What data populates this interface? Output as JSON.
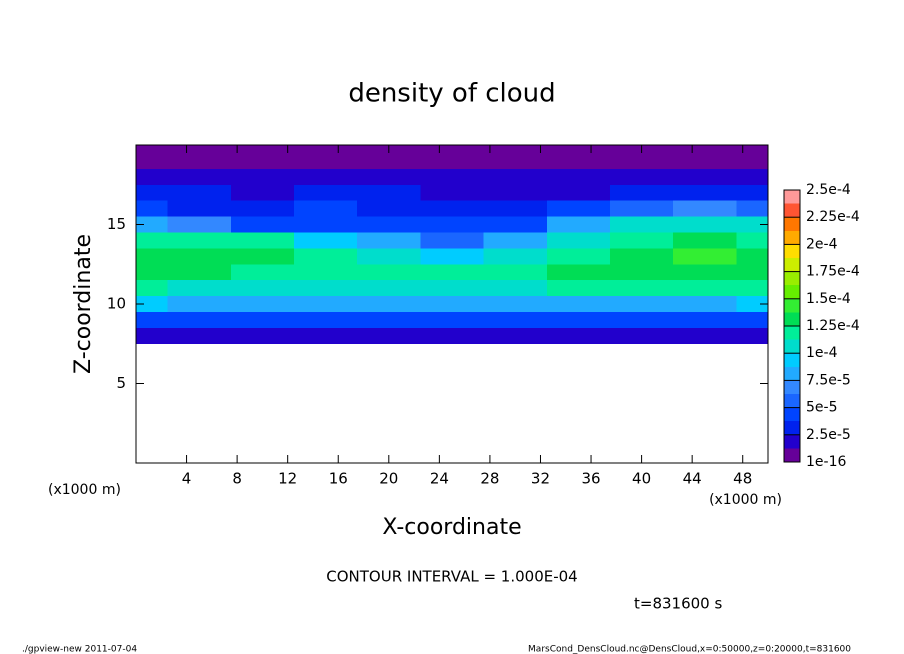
{
  "chart_data": {
    "type": "heatmap",
    "title": "density of cloud",
    "x_label": "X-coordinate",
    "y_label": "Z-coordinate",
    "x_unit_left": "(x1000 m)",
    "x_unit_right": "(x1000 m)",
    "annotation": "CONTOUR INTERVAL = 1.000E-04",
    "time_label": "t=831600 s",
    "footer_left": "./gpview-new   2011-07-04",
    "footer_right": "MarsCond_DensCloud.nc@DensCloud,x=0:50000,z=0:20000,t=831600",
    "xlim": [
      0,
      50
    ],
    "ylim": [
      0,
      20
    ],
    "xticks": [
      4,
      8,
      12,
      16,
      20,
      24,
      28,
      32,
      36,
      40,
      44,
      48
    ],
    "yticks": [
      5,
      10,
      15
    ],
    "x": [
      0,
      5,
      10,
      15,
      20,
      25,
      30,
      35,
      40,
      45,
      50
    ],
    "z": [
      8,
      9,
      10,
      11,
      12,
      13,
      14,
      15,
      16,
      17,
      18,
      19,
      20
    ],
    "values": [
      [
        2e-05,
        2e-05,
        2e-05,
        2e-05,
        2e-05,
        2e-05,
        2e-05,
        2e-05,
        2e-05,
        2e-05,
        2e-05
      ],
      [
        5e-05,
        5e-05,
        4.5e-05,
        5e-05,
        5e-05,
        5e-05,
        5e-05,
        5e-05,
        5e-05,
        5e-05,
        5e-05
      ],
      [
        9e-05,
        8e-05,
        8e-05,
        8.5e-05,
        8e-05,
        8e-05,
        8e-05,
        8e-05,
        8.5e-05,
        8.5e-05,
        9e-05
      ],
      [
        0.000115,
        0.00011,
        0.00011,
        0.00011,
        0.000105,
        0.00011,
        0.00011,
        0.000115,
        0.000115,
        0.000115,
        0.000115
      ],
      [
        0.00013,
        0.00013,
        0.000125,
        0.000125,
        0.00012,
        0.000115,
        0.00012,
        0.00013,
        0.00013,
        0.000135,
        0.00013
      ],
      [
        0.000135,
        0.00013,
        0.00013,
        0.00012,
        0.00011,
        9e-05,
        0.00011,
        0.000125,
        0.000135,
        0.00014,
        0.000135
      ],
      [
        0.00012,
        0.00012,
        0.000115,
        0.0001,
        8e-05,
        6e-05,
        8e-05,
        0.000105,
        0.000125,
        0.00013,
        0.000125
      ],
      [
        8e-05,
        7e-05,
        5e-05,
        4.5e-05,
        4.5e-05,
        4e-05,
        5e-05,
        8e-05,
        0.000105,
        0.00011,
        0.000105
      ],
      [
        4e-05,
        3.5e-05,
        3e-05,
        4e-05,
        3.5e-05,
        3e-05,
        3e-05,
        4e-05,
        6e-05,
        7e-05,
        6e-05
      ],
      [
        3e-05,
        3e-05,
        2.5e-05,
        3e-05,
        3e-05,
        2.5e-05,
        2.5e-05,
        2.5e-05,
        3e-05,
        3.5e-05,
        3e-05
      ],
      [
        2e-05,
        2e-05,
        2e-05,
        2e-05,
        2e-05,
        2e-05,
        2e-05,
        2e-05,
        2e-05,
        2e-05,
        2e-05
      ],
      [
        1.2e-05,
        1.2e-05,
        1.2e-05,
        1.2e-05,
        1.2e-05,
        1.2e-05,
        1.2e-05,
        1.2e-05,
        1.2e-05,
        1.2e-05,
        1.2e-05
      ],
      [
        5e-06,
        5e-06,
        5e-06,
        5e-06,
        5e-06,
        5e-06,
        5e-06,
        5e-06,
        5e-06,
        5e-06,
        5e-06
      ]
    ],
    "colorbar_ticks": [
      {
        "value": 1e-16,
        "label": "1e-16"
      },
      {
        "value": 2.5e-05,
        "label": "2.5e-5"
      },
      {
        "value": 5e-05,
        "label": "5e-5"
      },
      {
        "value": 7.5e-05,
        "label": "7.5e-5"
      },
      {
        "value": 0.0001,
        "label": "1e-4"
      },
      {
        "value": 0.000125,
        "label": "1.25e-4"
      },
      {
        "value": 0.00015,
        "label": "1.5e-4"
      },
      {
        "value": 0.000175,
        "label": "1.75e-4"
      },
      {
        "value": 0.0002,
        "label": "2e-4"
      },
      {
        "value": 0.000225,
        "label": "2.25e-4"
      },
      {
        "value": 0.00025,
        "label": "2.5e-4"
      }
    ],
    "colors": [
      "#660099",
      "#2200cc",
      "#0022ee",
      "#0044ff",
      "#1a66ff",
      "#3388ff",
      "#22aaff",
      "#00ccff",
      "#00ddcc",
      "#00ee99",
      "#00dd55",
      "#33ee33",
      "#66ee00",
      "#99ee00",
      "#ccee00",
      "#ffdd00",
      "#ffaa00",
      "#ff7700",
      "#ff5533",
      "#ff9999"
    ]
  }
}
